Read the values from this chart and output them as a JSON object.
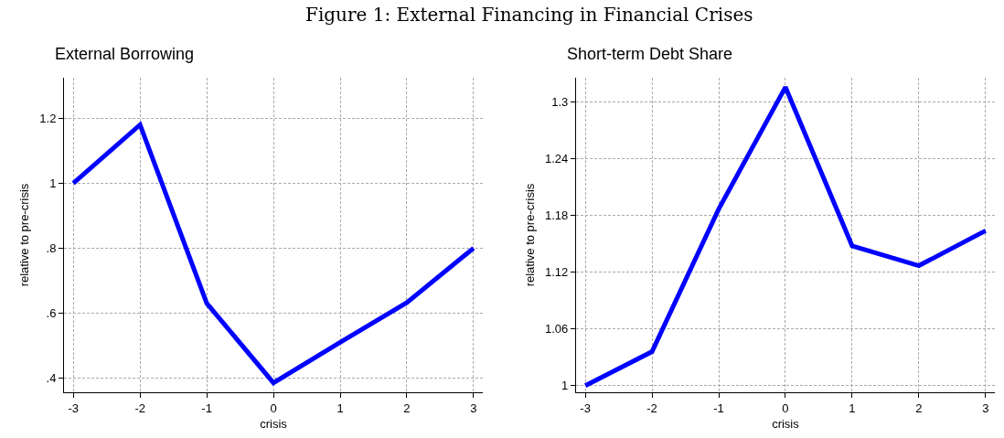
{
  "chart_data": [
    {
      "type": "line",
      "title": "External Borrowing",
      "xlabel": "crisis",
      "ylabel": "relative to pre-crisis",
      "annotations": [
        "Figure 1: External Financing in Financial Crises"
      ],
      "x": [
        -3,
        -2,
        -1,
        0,
        1,
        2,
        3
      ],
      "series": [
        {
          "color": "#0000ff",
          "values": [
            1.0,
            1.18,
            0.63,
            0.385,
            0.51,
            0.632,
            0.8
          ]
        }
      ],
      "xlim": [
        -3.14,
        3.14
      ],
      "xticks": [
        -3,
        -2,
        -1,
        0,
        1,
        2,
        3
      ],
      "ylim": [
        0.356,
        1.325
      ],
      "yticks": [
        {
          "value": 0.4,
          "label": ".4"
        },
        {
          "value": 0.6,
          "label": ".6"
        },
        {
          "value": 0.8,
          "label": ".8"
        },
        1,
        1.2
      ],
      "grid": true,
      "marker": "none",
      "line_style": "solid"
    },
    {
      "type": "line",
      "title": "Short-term Debt Share",
      "xlabel": "crisis",
      "ylabel": "relative to pre-crisis",
      "x": [
        -3,
        -2,
        -1,
        0,
        1,
        2,
        3
      ],
      "series": [
        {
          "color": "#0000ff",
          "values": [
            1.0,
            1.036,
            1.187,
            1.316,
            1.148,
            1.127,
            1.164
          ]
        }
      ],
      "xlim": [
        -3.14,
        3.14
      ],
      "xticks": [
        -3,
        -2,
        -1,
        0,
        1,
        2,
        3
      ],
      "ylim": [
        0.993,
        1.326
      ],
      "yticks": [
        1,
        1.06,
        1.12,
        1.18,
        1.24,
        1.3
      ],
      "grid": true,
      "marker": "none",
      "line_style": "solid"
    }
  ]
}
